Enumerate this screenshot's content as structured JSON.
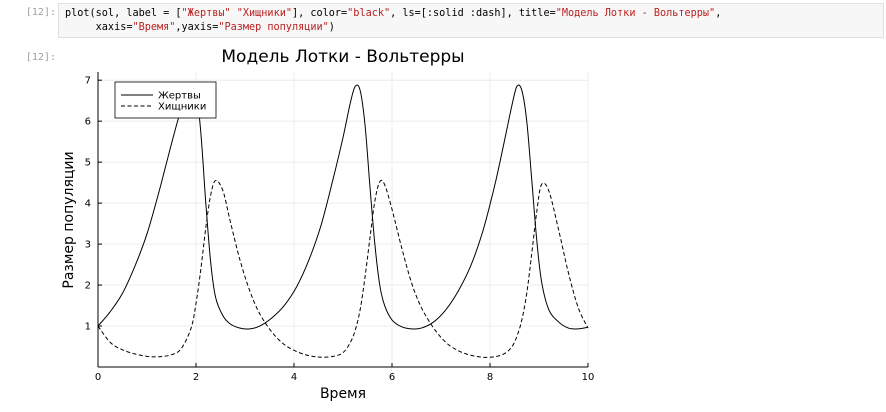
{
  "cell": {
    "input_prompt": "[12]:",
    "output_prompt": "[12]:",
    "code_lines": [
      [
        [
          "plot(sol, label = [",
          ""
        ],
        [
          "\"Жертвы\"",
          "s"
        ],
        [
          " ",
          ""
        ],
        [
          "\"Хищники\"",
          "s"
        ],
        [
          "], color=",
          ""
        ],
        [
          "\"black\"",
          "s"
        ],
        [
          ", ls=[:solid :dash], title=",
          ""
        ],
        [
          "\"Модель Лотки - Вольтерры\"",
          "s"
        ],
        [
          ",",
          ""
        ]
      ],
      [
        [
          "     xaxis=",
          ""
        ],
        [
          "\"Время\"",
          "s"
        ],
        [
          ",yaxis=",
          ""
        ],
        [
          "\"Размер популяции\"",
          "s"
        ],
        [
          ")",
          ""
        ]
      ]
    ]
  },
  "chart_data": {
    "type": "line",
    "title": "Модель Лотки - Вольтерры",
    "xlabel": "Время",
    "ylabel": "Размер популяции",
    "xlim": [
      0,
      10
    ],
    "ylim": [
      0,
      7.2
    ],
    "xticks": [
      0,
      2,
      4,
      6,
      8,
      10
    ],
    "yticks": [
      1,
      2,
      3,
      4,
      5,
      6,
      7
    ],
    "grid": true,
    "legend_position": "top-left",
    "line_color": "#000000",
    "x": [
      0,
      0.25,
      0.5,
      0.75,
      1,
      1.25,
      1.5,
      1.7,
      1.9,
      2.0,
      2.1,
      2.2,
      2.3,
      2.4,
      2.55,
      2.7,
      2.9,
      3.1,
      3.3,
      3.55,
      3.8,
      4.05,
      4.3,
      4.55,
      4.8,
      5.0,
      5.15,
      5.25,
      5.35,
      5.45,
      5.55,
      5.65,
      5.75,
      5.85,
      6.0,
      6.2,
      6.4,
      6.6,
      6.85,
      7.1,
      7.35,
      7.6,
      7.85,
      8.1,
      8.3,
      8.45,
      8.55,
      8.65,
      8.75,
      8.85,
      8.95,
      9.05,
      9.2,
      9.4,
      9.6,
      9.8,
      10
    ],
    "series": [
      {
        "name": "Жертвы",
        "style": "solid",
        "values": [
          1.0,
          1.35,
          1.8,
          2.45,
          3.25,
          4.3,
          5.45,
          6.3,
          6.85,
          6.75,
          5.7,
          4.0,
          2.55,
          1.7,
          1.25,
          1.05,
          0.95,
          0.93,
          1.0,
          1.2,
          1.5,
          1.95,
          2.6,
          3.45,
          4.6,
          5.6,
          6.45,
          6.85,
          6.75,
          5.9,
          4.4,
          3.0,
          2.0,
          1.5,
          1.15,
          0.98,
          0.93,
          0.95,
          1.1,
          1.4,
          1.85,
          2.45,
          3.3,
          4.45,
          5.55,
          6.4,
          6.85,
          6.75,
          6.0,
          4.6,
          3.15,
          2.1,
          1.4,
          1.1,
          0.95,
          0.93,
          0.97
        ]
      },
      {
        "name": "Хищники",
        "style": "dash",
        "values": [
          1.0,
          0.6,
          0.42,
          0.32,
          0.26,
          0.25,
          0.3,
          0.45,
          0.95,
          1.55,
          2.4,
          3.4,
          4.2,
          4.55,
          4.3,
          3.55,
          2.6,
          1.85,
          1.3,
          0.85,
          0.55,
          0.38,
          0.28,
          0.24,
          0.26,
          0.35,
          0.6,
          0.9,
          1.4,
          2.2,
          3.15,
          4.05,
          4.52,
          4.45,
          3.85,
          2.9,
          2.05,
          1.45,
          0.95,
          0.6,
          0.4,
          0.29,
          0.24,
          0.25,
          0.33,
          0.5,
          0.75,
          1.15,
          1.8,
          2.75,
          3.75,
          4.45,
          4.3,
          3.35,
          2.3,
          1.45,
          0.95
        ]
      }
    ]
  }
}
